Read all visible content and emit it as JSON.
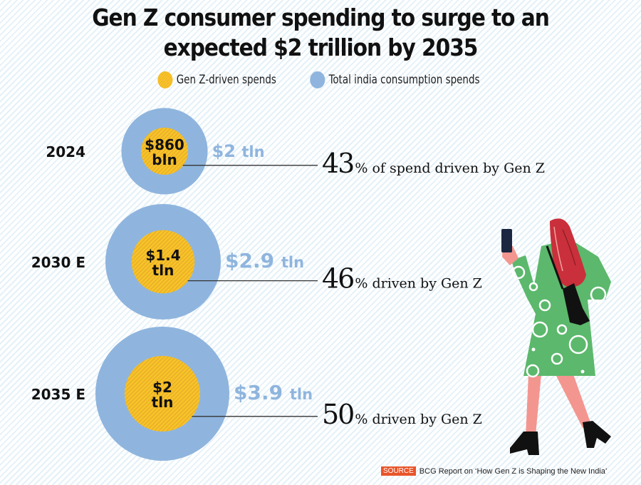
{
  "title_lines": [
    "Gen Z consumer spending to surge to an",
    "expected $2 trillion by 2035"
  ],
  "legend": [
    {
      "label": "Gen Z-driven spends",
      "color": "#f6c428"
    },
    {
      "label": "Total india consumption spends",
      "color": "#8fb5de"
    }
  ],
  "source": {
    "badge": "SOURCE",
    "text": "BCG Report on ‘How Gen Z is Shaping the New India’"
  },
  "chart_data": {
    "type": "nested-bubble",
    "title": "Gen Z consumer spending to surge to an expected $2 trillion by 2035",
    "unit": "USD trillion",
    "colors": {
      "genz": "#f6c428",
      "total": "#8fb5de"
    },
    "series": [
      {
        "name": "Gen Z-driven spends",
        "values": [
          0.86,
          1.4,
          2.0
        ]
      },
      {
        "name": "Total india consumption spends",
        "values": [
          2.0,
          2.9,
          3.9
        ]
      }
    ],
    "categories": [
      "2024",
      "2030 E",
      "2035 E"
    ],
    "rows": [
      {
        "year": "2024",
        "genz_label": [
          "$860",
          "bln"
        ],
        "total_prefix": "$2",
        "total_suffix": "tln",
        "pct": "43",
        "pct_text": "% of spend driven by Gen Z"
      },
      {
        "year": "2030 E",
        "genz_label": [
          "$1.4",
          "tln"
        ],
        "total_prefix": "$2.9",
        "total_suffix": "tln",
        "pct": "46",
        "pct_text": "% driven by Gen Z"
      },
      {
        "year": "2035 E",
        "genz_label": [
          "$2",
          "tln"
        ],
        "total_prefix": "$3.9",
        "total_suffix": "tln",
        "pct": "50",
        "pct_text": "% driven by Gen Z"
      }
    ]
  }
}
